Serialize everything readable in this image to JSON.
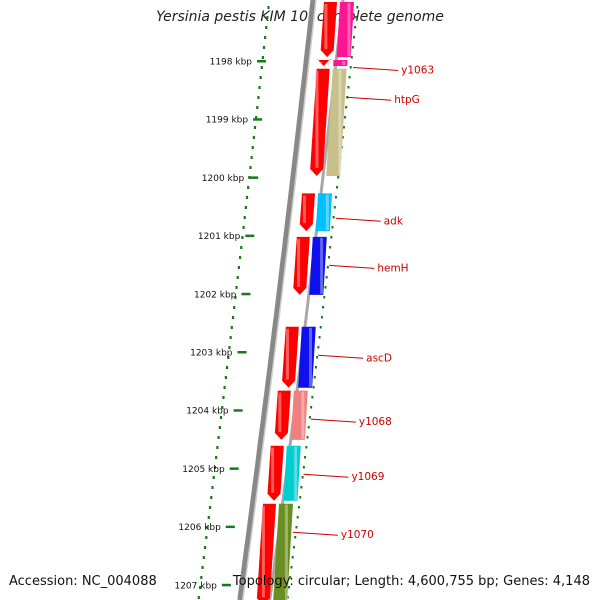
{
  "title": "Yersinia pestis KIM 10, complete genome",
  "footer": {
    "accession": "Accession: NC_004088",
    "topology": "Topology: circular; Length: 4,600,755 bp; Genes: 4,148"
  },
  "ruler": {
    "unit": "kbp",
    "ticks": [
      "1198 kbp",
      "1199 kbp",
      "1200 kbp",
      "1201 kbp",
      "1202 kbp",
      "1203 kbp",
      "1204 kbp",
      "1205 kbp",
      "1206 kbp",
      "1207 kbp"
    ]
  },
  "genes": [
    {
      "label": "",
      "start_kbp": 1196.9,
      "end_kbp": 1197.85,
      "strand": "-",
      "color": "#ff1493"
    },
    {
      "label": "y1063",
      "start_kbp": 1197.9,
      "end_kbp": 1197.95,
      "strand": "-",
      "color": "#ff1493"
    },
    {
      "label": "htpG",
      "start_kbp": 1198.05,
      "end_kbp": 1199.9,
      "strand": "-",
      "color": "#c8c08a"
    },
    {
      "label": "adk",
      "start_kbp": 1200.2,
      "end_kbp": 1200.85,
      "strand": "-",
      "color": "#00bfff"
    },
    {
      "label": "hemH",
      "start_kbp": 1200.95,
      "end_kbp": 1201.95,
      "strand": "-",
      "color": "#1010ee"
    },
    {
      "label": "ascD",
      "start_kbp": 1202.5,
      "end_kbp": 1203.55,
      "strand": "-",
      "color": "#1010ee"
    },
    {
      "label": "y1068",
      "start_kbp": 1203.6,
      "end_kbp": 1204.45,
      "strand": "-",
      "color": "#f08080"
    },
    {
      "label": "y1069",
      "start_kbp": 1204.55,
      "end_kbp": 1205.5,
      "strand": "-",
      "color": "#00ced1"
    },
    {
      "label": "y1070",
      "start_kbp": 1205.55,
      "end_kbp": 1207.3,
      "strand": "-",
      "color": "#6b8e23"
    }
  ],
  "colors": {
    "strand_arrow": "#ff0000",
    "backbone": "#888888",
    "ruler": "#1a7a1a",
    "label_text": "#cc0000",
    "label_line": "#cc0000"
  }
}
